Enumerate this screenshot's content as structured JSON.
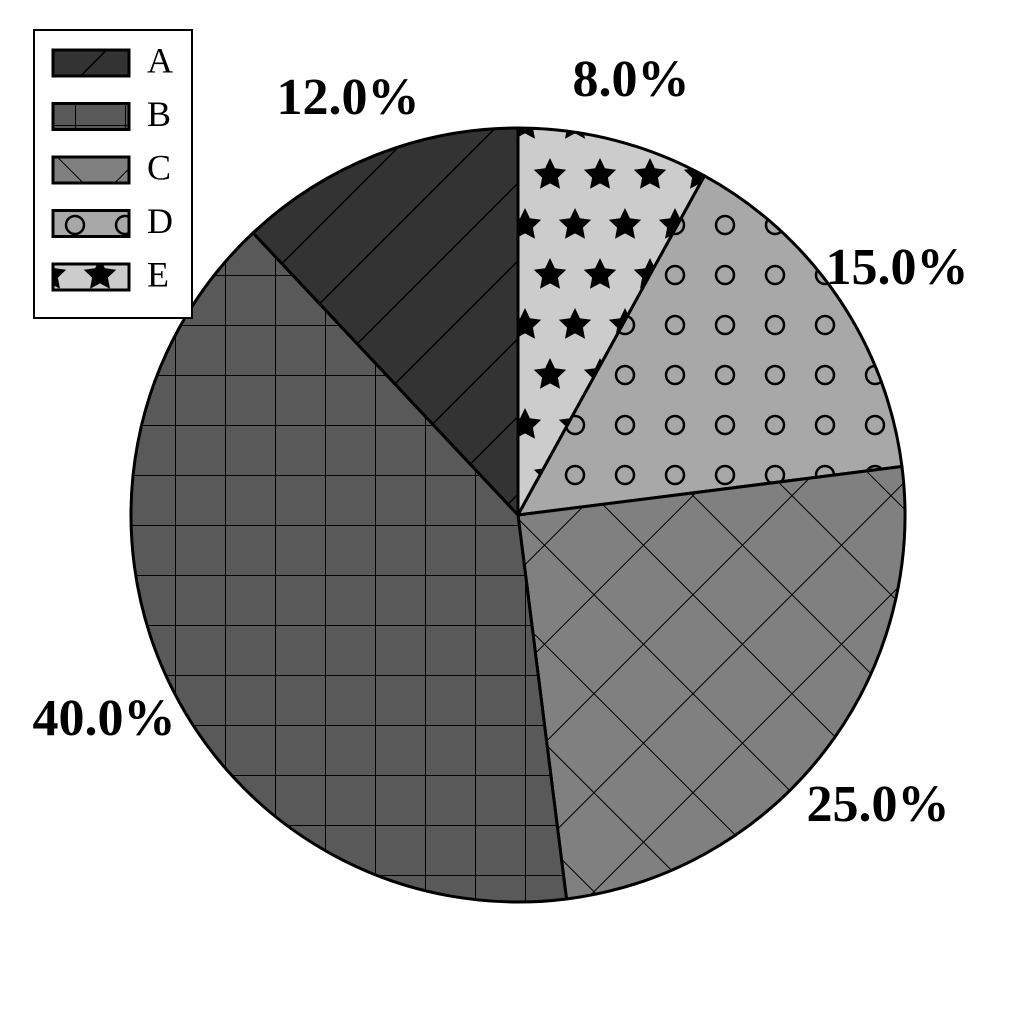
{
  "chart_data": {
    "type": "pie",
    "title": "",
    "legend_position": "top-left",
    "start_angle_deg": 90,
    "direction": "clockwise",
    "categories": [
      "E",
      "D",
      "C",
      "B",
      "A"
    ],
    "values": [
      8.0,
      15.0,
      25.0,
      40.0,
      12.0
    ],
    "labels": [
      "8.0%",
      "15.0%",
      "25.0%",
      "40.0%",
      "12.0%"
    ],
    "colors": [
      "#cccccc",
      "#a8a8a8",
      "#808080",
      "#595959",
      "#333333"
    ],
    "patterns": [
      "stars",
      "circles",
      "crosshatch-diagonal",
      "grid",
      "diagonal-lines"
    ],
    "legend": [
      {
        "label": "A",
        "color": "#333333",
        "pattern": "diagonal-lines"
      },
      {
        "label": "B",
        "color": "#595959",
        "pattern": "grid"
      },
      {
        "label": "C",
        "color": "#808080",
        "pattern": "crosshatch-diagonal"
      },
      {
        "label": "D",
        "color": "#a8a8a8",
        "pattern": "circles"
      },
      {
        "label": "E",
        "color": "#cccccc",
        "pattern": "stars"
      }
    ]
  }
}
